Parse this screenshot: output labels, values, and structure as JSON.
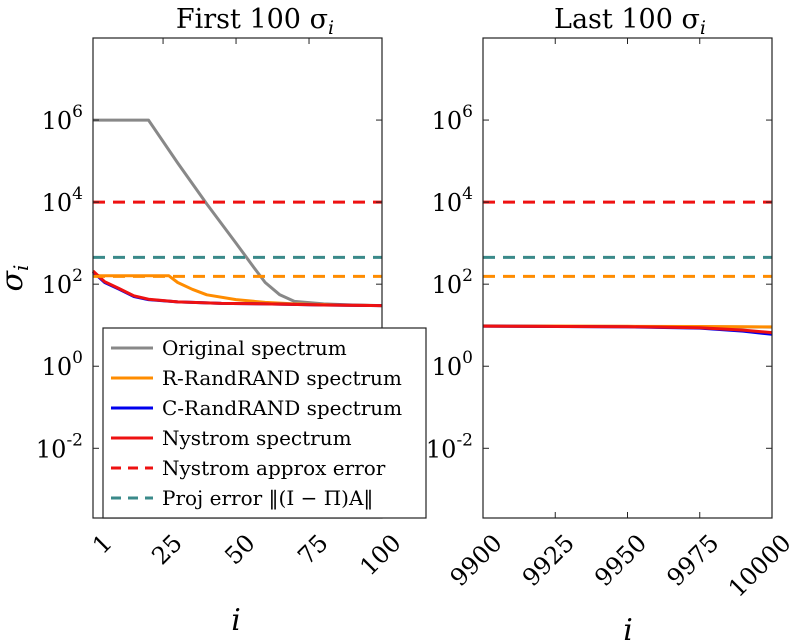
{
  "chart_data": [
    {
      "type": "line",
      "title": "First 100 σ",
      "title_sub": "i",
      "xlabel": "i",
      "ylabel": "σ",
      "ylabel_sub": "i",
      "yscale": "log",
      "xlim": [
        1,
        100
      ],
      "ylim": [
        0.0002,
        100000000
      ],
      "x_ticks": [
        1,
        25,
        50,
        75,
        100
      ],
      "x_tick_labels": [
        "1",
        "25",
        "50",
        "75",
        "100"
      ],
      "y_ticks": [
        0.01,
        1,
        100,
        10000,
        1000000
      ],
      "y_tick_labels": [
        [
          "10",
          "-2"
        ],
        [
          "10",
          "0"
        ],
        [
          "10",
          "2"
        ],
        [
          "10",
          "4"
        ],
        [
          "10",
          "6"
        ]
      ],
      "series": [
        {
          "name": "Original spectrum",
          "color": "#888888",
          "style": "solid",
          "points": [
            [
              1,
              1000000
            ],
            [
              20,
              1000000
            ],
            [
              30,
              90000
            ],
            [
              40,
              9000
            ],
            [
              50,
              1000
            ],
            [
              56,
              260
            ],
            [
              60,
              110
            ],
            [
              65,
              55
            ],
            [
              70,
              38
            ],
            [
              80,
              33
            ],
            [
              90,
              31
            ],
            [
              100,
              30
            ]
          ]
        },
        {
          "name": "R-RandRAND spectrum",
          "color": "#ff8c00",
          "style": "solid",
          "points": [
            [
              1,
              160
            ],
            [
              27,
              160
            ],
            [
              30,
              110
            ],
            [
              35,
              75
            ],
            [
              40,
              55
            ],
            [
              50,
              42
            ],
            [
              60,
              36
            ],
            [
              70,
              33
            ],
            [
              85,
              31
            ],
            [
              100,
              30
            ]
          ]
        },
        {
          "name": "C-RandRAND spectrum",
          "color": "#0000ee",
          "style": "solid",
          "points": [
            [
              1,
              200
            ],
            [
              5,
              110
            ],
            [
              10,
              75
            ],
            [
              15,
              50
            ],
            [
              20,
              42
            ],
            [
              30,
              37
            ],
            [
              45,
              34
            ],
            [
              60,
              33
            ],
            [
              80,
              31
            ],
            [
              100,
              30
            ]
          ]
        },
        {
          "name": "Nystrom spectrum",
          "color": "#ee1111",
          "style": "solid",
          "points": [
            [
              1,
              210
            ],
            [
              5,
              115
            ],
            [
              10,
              78
            ],
            [
              15,
              52
            ],
            [
              20,
              43
            ],
            [
              30,
              37
            ],
            [
              45,
              34
            ],
            [
              60,
              33
            ],
            [
              80,
              31
            ],
            [
              100,
              30
            ]
          ]
        },
        {
          "name": "Nystrom approx error",
          "color": "#ee1111",
          "style": "dashed",
          "points": [
            [
              1,
              10000
            ],
            [
              100,
              10000
            ]
          ]
        },
        {
          "name": "Proj error",
          "color": "#3a8a8a",
          "style": "dashed",
          "points": [
            [
              1,
              450
            ],
            [
              100,
              450
            ]
          ]
        },
        {
          "name": "R-RandRAND level",
          "color": "#ff8c00",
          "style": "dashed",
          "points": [
            [
              1,
              155
            ],
            [
              100,
              155
            ]
          ]
        }
      ],
      "legend": {
        "position": "lower-left",
        "entries": [
          {
            "label": "Original spectrum",
            "color": "#888888",
            "style": "solid"
          },
          {
            "label": "R-RandRAND spectrum",
            "color": "#ff8c00",
            "style": "solid"
          },
          {
            "label": "C-RandRAND spectrum",
            "color": "#0000ee",
            "style": "solid"
          },
          {
            "label": "Nystrom spectrum",
            "color": "#ee1111",
            "style": "solid"
          },
          {
            "label": "Nystrom approx error",
            "color": "#ee1111",
            "style": "dashed"
          },
          {
            "label": "Proj error ‖(I − Π)A‖",
            "color": "#3a8a8a",
            "style": "dashed"
          }
        ]
      }
    },
    {
      "type": "line",
      "title": "Last 100 σ",
      "title_sub": "i",
      "xlabel": "i",
      "yscale": "log",
      "xlim": [
        9900,
        10000
      ],
      "ylim": [
        0.0002,
        100000000
      ],
      "x_ticks": [
        9900,
        9925,
        9950,
        9975,
        10000
      ],
      "x_tick_labels": [
        "9900",
        "9925",
        "9950",
        "9975",
        "10000"
      ],
      "y_ticks": [
        0.01,
        1,
        100,
        10000,
        1000000
      ],
      "y_tick_labels": [
        [
          "10",
          "-2"
        ],
        [
          "10",
          "0"
        ],
        [
          "10",
          "2"
        ],
        [
          "10",
          "4"
        ],
        [
          "10",
          "6"
        ]
      ],
      "series": [
        {
          "name": "Original spectrum",
          "color": "#888888",
          "style": "solid",
          "points": [
            [
              9900,
              9.5
            ],
            [
              9950,
              9.3
            ],
            [
              9975,
              9.2
            ],
            [
              10000,
              9.0
            ]
          ]
        },
        {
          "name": "R-RandRAND spectrum",
          "color": "#ff8c00",
          "style": "solid",
          "points": [
            [
              9900,
              9.6
            ],
            [
              9950,
              9.4
            ],
            [
              9975,
              9.3
            ],
            [
              9990,
              9.2
            ],
            [
              10000,
              9.1
            ]
          ]
        },
        {
          "name": "C-RandRAND spectrum",
          "color": "#0000ee",
          "style": "solid",
          "points": [
            [
              9900,
              9.5
            ],
            [
              9950,
              9.1
            ],
            [
              9975,
              8.5
            ],
            [
              9990,
              7.2
            ],
            [
              10000,
              6.0
            ]
          ]
        },
        {
          "name": "Nystrom spectrum",
          "color": "#ee1111",
          "style": "solid",
          "points": [
            [
              9900,
              9.5
            ],
            [
              9950,
              9.2
            ],
            [
              9975,
              8.7
            ],
            [
              9990,
              7.6
            ],
            [
              10000,
              6.6
            ]
          ]
        },
        {
          "name": "Nystrom approx error",
          "color": "#ee1111",
          "style": "dashed",
          "points": [
            [
              9900,
              10000
            ],
            [
              10000,
              10000
            ]
          ]
        },
        {
          "name": "Proj error",
          "color": "#3a8a8a",
          "style": "dashed",
          "points": [
            [
              9900,
              450
            ],
            [
              10000,
              450
            ]
          ]
        },
        {
          "name": "R-RandRAND level",
          "color": "#ff8c00",
          "style": "dashed",
          "points": [
            [
              9900,
              155
            ],
            [
              10000,
              155
            ]
          ]
        }
      ]
    }
  ]
}
